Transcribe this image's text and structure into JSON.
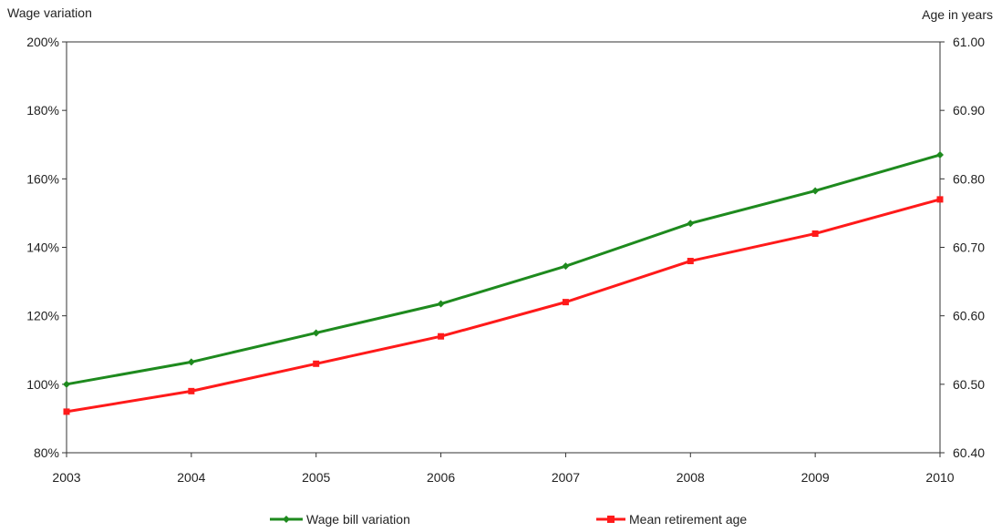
{
  "chart_data": {
    "type": "line",
    "categories": [
      "2003",
      "2004",
      "2005",
      "2006",
      "2007",
      "2008",
      "2009",
      "2010"
    ],
    "y_left": {
      "label": "Wage variation",
      "ticks": [
        "80%",
        "100%",
        "120%",
        "140%",
        "160%",
        "180%",
        "200%"
      ],
      "range": [
        80,
        200
      ]
    },
    "y_right": {
      "label": "Age in years",
      "ticks": [
        "60.40",
        "60.50",
        "60.60",
        "60.70",
        "60.80",
        "60.90",
        "61.00"
      ],
      "range": [
        60.4,
        61.0
      ]
    },
    "series": [
      {
        "name": "Wage bill variation",
        "axis": "left",
        "color": "#1e8a1e",
        "marker": "diamond",
        "values": [
          100,
          106.5,
          115,
          123.5,
          134.5,
          147,
          156.5,
          167
        ]
      },
      {
        "name": "Mean retirement age",
        "axis": "right",
        "color": "#ff1a1a",
        "marker": "square",
        "values": [
          60.46,
          60.49,
          60.53,
          60.57,
          60.62,
          60.68,
          60.72,
          60.77
        ]
      }
    ],
    "grid": false,
    "legend_position": "bottom"
  }
}
